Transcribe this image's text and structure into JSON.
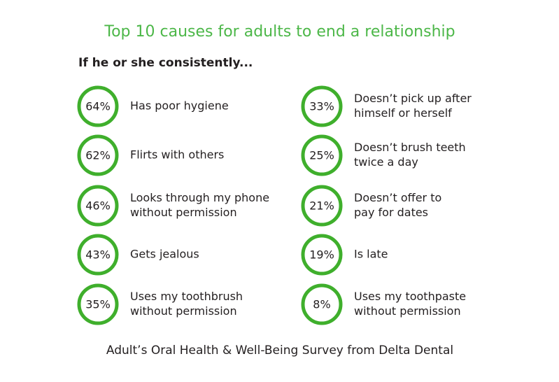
{
  "title": "Top 10 causes for adults to end a relationship",
  "subtitle": "If he or she consistently...",
  "columns": [
    [
      {
        "percent": "64%",
        "lines": [
          "Has poor hygiene"
        ]
      },
      {
        "percent": "62%",
        "lines": [
          "Flirts with others"
        ]
      },
      {
        "percent": "46%",
        "lines": [
          "Looks through my phone",
          "without permission"
        ]
      },
      {
        "percent": "43%",
        "lines": [
          "Gets jealous"
        ]
      },
      {
        "percent": "35%",
        "lines": [
          "Uses my toothbrush",
          "without permission"
        ]
      }
    ],
    [
      {
        "percent": "33%",
        "lines": [
          "Doesn’t pick up after",
          "himself or herself"
        ]
      },
      {
        "percent": "25%",
        "lines": [
          "Doesn’t brush teeth",
          "twice a day"
        ]
      },
      {
        "percent": "21%",
        "lines": [
          "Doesn’t offer to",
          "pay for dates"
        ]
      },
      {
        "percent": "19%",
        "lines": [
          "Is late"
        ]
      },
      {
        "percent": "8%",
        "lines": [
          "Uses my toothpaste",
          "without permission"
        ]
      }
    ]
  ],
  "footer": "Adult’s Oral Health & Well-Being Survey from Delta Dental"
}
